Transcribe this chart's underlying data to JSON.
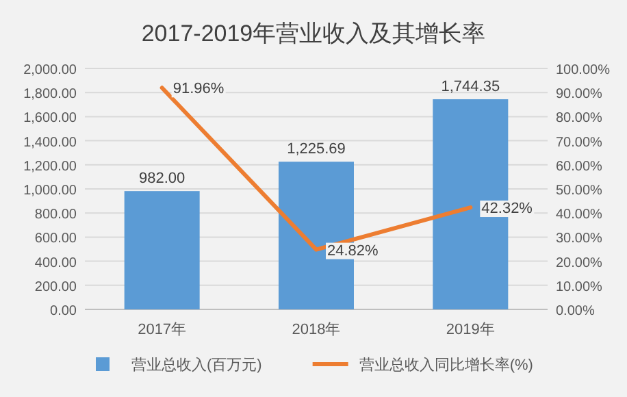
{
  "chart_data": {
    "type": "bar",
    "title": "2017-2019年营业收入及其增长率",
    "categories": [
      "2017年",
      "2018年",
      "2019年"
    ],
    "series": [
      {
        "name": "营业总收入(百万元)",
        "color": "#5b9bd5",
        "values": [
          982,
          1225.69,
          1744.35
        ],
        "value_labels": [
          "982.00",
          "1,225.69",
          "1,744.35"
        ]
      },
      {
        "name": "营业总收入同比增长率(%)",
        "type": "line",
        "axis": "y2",
        "color": "#ed7d31",
        "values": [
          91.96,
          24.82,
          42.32
        ],
        "value_labels": [
          "91.96%",
          "24.82%",
          "42.32%"
        ]
      }
    ],
    "ylim": [
      0,
      2000
    ],
    "yticks": [
      {
        "value": 0,
        "label": "0.00"
      },
      {
        "value": 200,
        "label": "200.00"
      },
      {
        "value": 400,
        "label": "400.00"
      },
      {
        "value": 600,
        "label": "600.00"
      },
      {
        "value": 800,
        "label": "800.00"
      },
      {
        "value": 1000,
        "label": "1,000.00"
      },
      {
        "value": 1200,
        "label": "1,200.00"
      },
      {
        "value": 1400,
        "label": "1,400.00"
      },
      {
        "value": 1600,
        "label": "1,600.00"
      },
      {
        "value": 1800,
        "label": "1,800.00"
      },
      {
        "value": 2000,
        "label": "2,000.00"
      }
    ],
    "y2lim": [
      0,
      100
    ],
    "y2ticks": [
      {
        "value": 0,
        "label": "0.00%"
      },
      {
        "value": 10,
        "label": "10.00%"
      },
      {
        "value": 20,
        "label": "20.00%"
      },
      {
        "value": 30,
        "label": "30.00%"
      },
      {
        "value": 40,
        "label": "40.00%"
      },
      {
        "value": 50,
        "label": "50.00%"
      },
      {
        "value": 60,
        "label": "60.00%"
      },
      {
        "value": 70,
        "label": "70.00%"
      },
      {
        "value": 80,
        "label": "80.00%"
      },
      {
        "value": 90,
        "label": "90.00%"
      },
      {
        "value": 100,
        "label": "100.00%"
      }
    ],
    "grid": "y",
    "legend": "bottom"
  }
}
